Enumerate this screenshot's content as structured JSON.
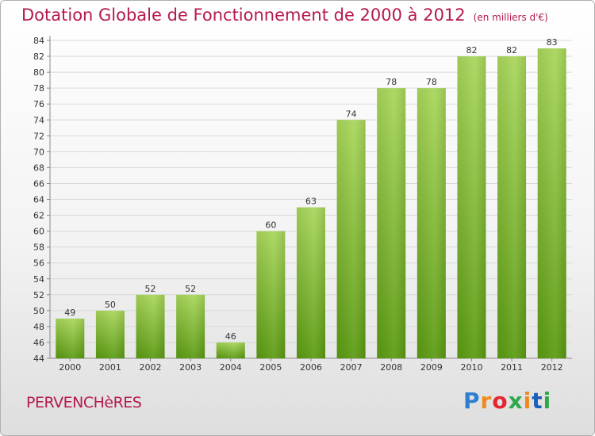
{
  "page": {
    "title": "Dotation Globale de Fonctionnement de 2000 à 2012",
    "unit": "(en milliers d'€)",
    "commune": "PERVENCHèRES",
    "logo": "Proxiti"
  },
  "colors": {
    "title": "#b5184f",
    "bar_light": "#a8d65a",
    "bar_dark": "#5a9a10",
    "grid": "#d9d9d9"
  },
  "chart_data": {
    "type": "bar",
    "categories": [
      "2000",
      "2001",
      "2002",
      "2003",
      "2004",
      "2005",
      "2006",
      "2007",
      "2008",
      "2009",
      "2010",
      "2011",
      "2012"
    ],
    "values": [
      49,
      50,
      52,
      52,
      46,
      60,
      63,
      74,
      78,
      78,
      82,
      82,
      83
    ],
    "ylim": [
      44,
      84
    ],
    "yticks": [
      44,
      46,
      48,
      50,
      52,
      54,
      56,
      58,
      60,
      62,
      64,
      66,
      68,
      70,
      72,
      74,
      76,
      78,
      80,
      82,
      84
    ],
    "grid": true
  }
}
